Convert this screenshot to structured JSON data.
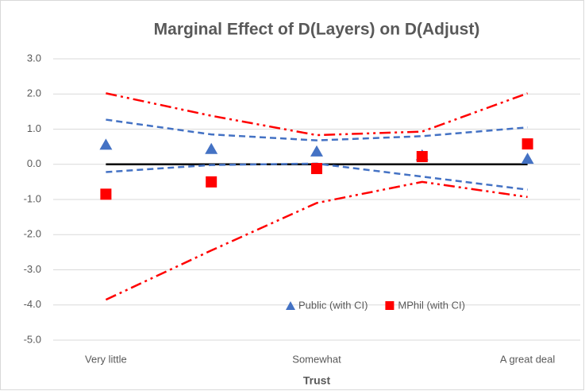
{
  "chart_data": {
    "type": "line",
    "title": "Marginal Effect of D(Layers) on D(Adjust)",
    "x_label": "Trust",
    "categories": [
      "Very little",
      null,
      "Somewhat",
      null,
      "A great deal"
    ],
    "ylim": [
      -5,
      3
    ],
    "yticks": [
      {
        "value": -5,
        "label": "-5.0"
      },
      {
        "value": -4,
        "label": "-4.0"
      },
      {
        "value": -3,
        "label": "-3.0"
      },
      {
        "value": -2,
        "label": "-2.0"
      },
      {
        "value": -1,
        "label": "-1.0"
      },
      {
        "value": 0,
        "label": "0.0"
      },
      {
        "value": 1,
        "label": "1.0"
      },
      {
        "value": 2,
        "label": "2.0"
      },
      {
        "value": 3,
        "label": "3.0"
      }
    ],
    "grid": true,
    "zero_line": true,
    "legend": "bottom-right",
    "series": [
      {
        "name": "Public (with CI)",
        "color": "#4472c4",
        "marker": "triangle",
        "ci_style": "dash",
        "values": [
          0.55,
          0.43,
          0.36,
          0.25,
          0.15
        ],
        "ci_upper": [
          1.27,
          0.85,
          0.68,
          0.8,
          1.05
        ],
        "ci_lower": [
          -0.22,
          -0.02,
          0.02,
          -0.35,
          -0.72
        ]
      },
      {
        "name": "MPhil (with CI)",
        "color": "#ff0000",
        "marker": "square",
        "ci_style": "dashdotdot",
        "values": [
          -0.85,
          -0.5,
          -0.12,
          0.22,
          0.58
        ],
        "ci_upper": [
          2.02,
          1.38,
          0.83,
          0.93,
          2.02
        ],
        "ci_lower": [
          -3.85,
          -2.45,
          -1.1,
          -0.5,
          -0.93
        ]
      }
    ]
  }
}
